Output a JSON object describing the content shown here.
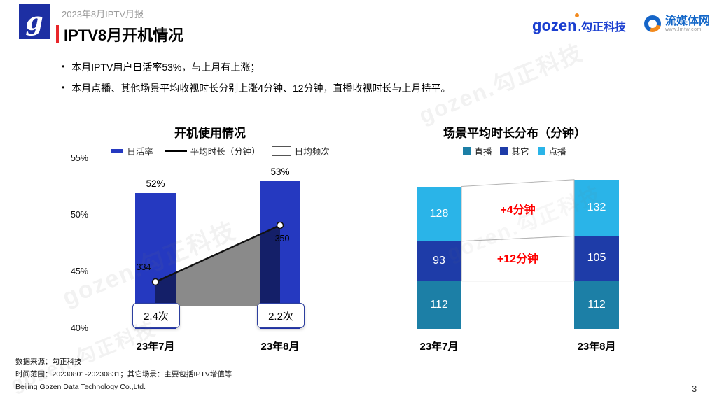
{
  "header": {
    "report_label": "2023年8月IPTV月报",
    "title": "IPTV8月开机情况"
  },
  "logos": {
    "gozen_monogram": "g",
    "gozen_name": "gozen",
    "gozen_suffix": ".勾正科技",
    "lmtw_name": "流媒体网",
    "lmtw_url": "www.lmtw.com"
  },
  "bullets": [
    "本月IPTV用户日活率53%，与上月有上涨；",
    "本月点播、其他场景平均收视时长分别上涨4分钟、12分钟，直播收视时长与上月持平。"
  ],
  "footer": {
    "source": "数据来源：勾正科技",
    "range": "时间范围：20230801-20230831；其它场景：主要包括IPTV增值等",
    "company": "Beijing Gozen Data Technology Co.,Ltd.",
    "page_number": "3"
  },
  "watermark": "gozen.勾正科技",
  "chart_data": [
    {
      "type": "bar",
      "title": "开机使用情况",
      "categories": [
        "23年7月",
        "23年8月"
      ],
      "series": [
        {
          "name": "日活率",
          "type": "bar",
          "unit": "%",
          "values": [
            52,
            53
          ],
          "labels": [
            "52%",
            "53%"
          ],
          "color": "#2539C0"
        },
        {
          "name": "平均时长（分钟）",
          "type": "line",
          "unit": "分钟",
          "values": [
            334,
            350
          ],
          "color": "#000000"
        },
        {
          "name": "日均频次",
          "type": "label-box",
          "unit": "次",
          "values": [
            2.4,
            2.2
          ],
          "labels": [
            "2.4次",
            "2.2次"
          ]
        }
      ],
      "y_axis": {
        "ticks": [
          "55%",
          "50%",
          "45%",
          "40%"
        ],
        "min": 40,
        "max": 55
      },
      "legend_position": "top",
      "grid": false
    },
    {
      "type": "bar",
      "subtype": "stacked",
      "title": "场景平均时长分布（分钟）",
      "categories": [
        "23年7月",
        "23年8月"
      ],
      "series": [
        {
          "name": "直播",
          "values": [
            112,
            112
          ],
          "color": "#1C7FA6"
        },
        {
          "name": "其它",
          "values": [
            93,
            105
          ],
          "color": "#1E3CA8"
        },
        {
          "name": "点播",
          "values": [
            128,
            132
          ],
          "color": "#2AB4E8"
        }
      ],
      "annotations": [
        {
          "text": "+4分钟",
          "between": "点播",
          "color": "#FF0000"
        },
        {
          "text": "+12分钟",
          "between": "其它",
          "color": "#FF0000"
        }
      ],
      "legend_position": "top",
      "grid": false
    }
  ]
}
